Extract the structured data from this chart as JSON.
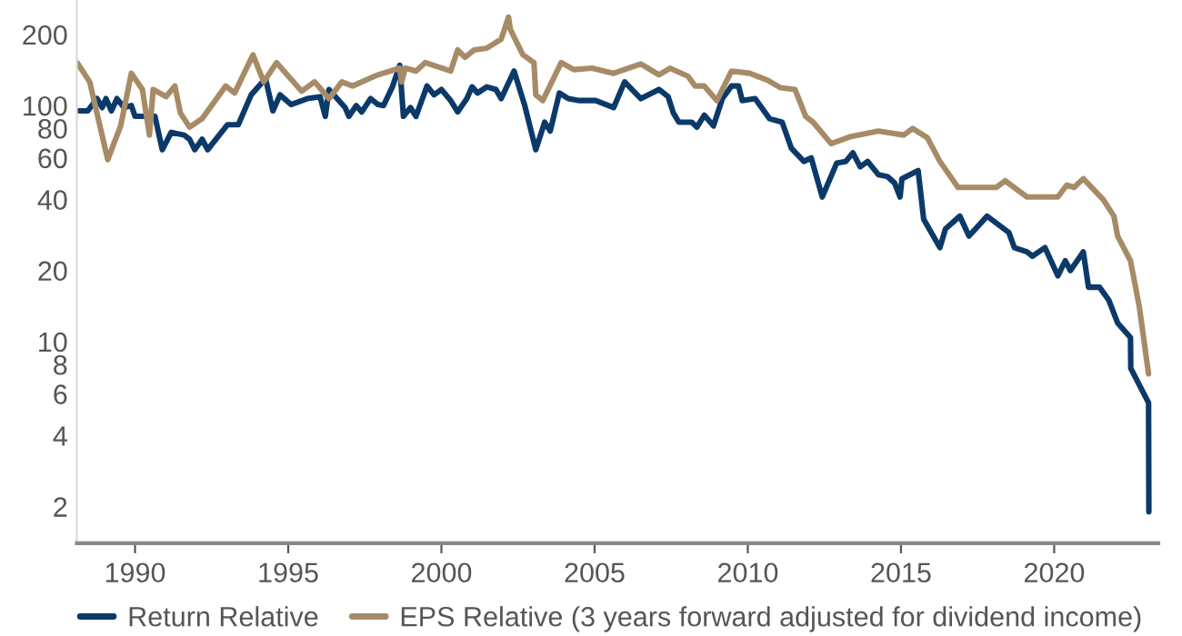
{
  "chart_data": {
    "type": "line",
    "log": "y",
    "grid": false,
    "legend": "bottom",
    "marker": "none",
    "line_style": "solid",
    "xlim": [
      1988.1,
      2023.4
    ],
    "xticks": [
      1990,
      1995,
      2000,
      2005,
      2010,
      2015,
      2020
    ],
    "ylim": [
      1.4,
      280
    ],
    "yticks": [
      2,
      4,
      6,
      8,
      10,
      20,
      40,
      60,
      80,
      100,
      200
    ],
    "series": [
      {
        "name": "Return Relative",
        "color": "#0b3a6a",
        "x": [
          1988.17,
          1988.46,
          1988.76,
          1988.93,
          1989.05,
          1989.23,
          1989.41,
          1989.64,
          1989.88,
          1990.0,
          1990.65,
          1990.89,
          1991.18,
          1991.6,
          1991.78,
          1991.95,
          1992.19,
          1992.37,
          1993.02,
          1993.37,
          1993.79,
          1994.26,
          1994.5,
          1994.73,
          1995.09,
          1995.62,
          1996.04,
          1996.21,
          1996.33,
          1996.86,
          1996.98,
          1997.22,
          1997.4,
          1997.69,
          1997.93,
          1998.11,
          1998.4,
          1998.64,
          1998.76,
          1998.99,
          1999.17,
          1999.53,
          1999.76,
          2000.0,
          2000.3,
          2000.53,
          2000.83,
          2001.0,
          2001.18,
          2001.48,
          2001.78,
          2001.95,
          2002.37,
          2002.72,
          2003.08,
          2003.37,
          2003.55,
          2003.85,
          2004.14,
          2004.5,
          2005.03,
          2005.62,
          2005.98,
          2006.51,
          2007.1,
          2007.4,
          2007.57,
          2007.75,
          2008.17,
          2008.34,
          2008.58,
          2008.88,
          2009.17,
          2009.47,
          2009.7,
          2009.82,
          2010.24,
          2010.71,
          2011.12,
          2011.42,
          2011.83,
          2012.07,
          2012.43,
          2012.9,
          2013.2,
          2013.43,
          2013.67,
          2013.91,
          2014.26,
          2014.56,
          2014.79,
          2014.97,
          2015.03,
          2015.56,
          2015.74,
          2016.27,
          2016.45,
          2016.92,
          2017.22,
          2017.81,
          2018.52,
          2018.7,
          2019.11,
          2019.29,
          2019.7,
          2020.12,
          2020.36,
          2020.53,
          2020.95,
          2021.12,
          2021.48,
          2021.78,
          2022.07,
          2022.49,
          2022.5,
          2023.08,
          2023.09
        ],
        "values": [
          95,
          95,
          107,
          98,
          107,
          95,
          107,
          98,
          100,
          90,
          90,
          65,
          77,
          75,
          72,
          65,
          72,
          65,
          83,
          83,
          111,
          130,
          95,
          111,
          101,
          107,
          109,
          90,
          117,
          98,
          90,
          100,
          94,
          107,
          101,
          100,
          120,
          148,
          90,
          98,
          90,
          121,
          111,
          117,
          105,
          94,
          107,
          120,
          113,
          120,
          117,
          107,
          140,
          100,
          65,
          85,
          78,
          113,
          107,
          105,
          105,
          98,
          126,
          107,
          117,
          109,
          93,
          85,
          85,
          81,
          91,
          82,
          107,
          121,
          121,
          105,
          107,
          88,
          85,
          66,
          58,
          60,
          41,
          57,
          58,
          63,
          55,
          58,
          51,
          50,
          47,
          41,
          49,
          53,
          33,
          25,
          30,
          34,
          28,
          34,
          29,
          25,
          24,
          23,
          25,
          19,
          22,
          20,
          24,
          17,
          17,
          15,
          12,
          10.4,
          7.7,
          5.5,
          1.9
        ]
      },
      {
        "name": "EPS Relative (3 years forward adjusted for dividend income)",
        "color": "#a78b67",
        "x": [
          1988.11,
          1988.52,
          1989.11,
          1989.53,
          1989.88,
          1990.24,
          1990.47,
          1990.59,
          1991.01,
          1991.3,
          1991.48,
          1991.78,
          1992.19,
          1992.96,
          1993.25,
          1993.85,
          1994.2,
          1994.62,
          1995.44,
          1995.86,
          1996.33,
          1996.75,
          1997.1,
          1997.93,
          1998.64,
          1998.7,
          1998.82,
          1999.17,
          1999.47,
          2000.3,
          2000.53,
          2000.77,
          2001.07,
          2001.48,
          2001.95,
          2002.19,
          2002.25,
          2002.66,
          2003.02,
          2003.08,
          2003.31,
          2003.91,
          2004.32,
          2004.91,
          2005.62,
          2006.51,
          2007.1,
          2007.46,
          2008.05,
          2008.28,
          2008.58,
          2008.99,
          2009.47,
          2010.06,
          2010.65,
          2011.07,
          2011.54,
          2011.89,
          2012.13,
          2012.72,
          2013.37,
          2014.26,
          2015.09,
          2015.38,
          2015.86,
          2016.27,
          2016.86,
          2018.11,
          2018.4,
          2019.11,
          2020.12,
          2020.41,
          2020.65,
          2020.95,
          2021.6,
          2021.95,
          2022.07,
          2022.49,
          2022.78,
          2023.08
        ],
        "values": [
          152,
          126,
          59,
          82,
          137,
          117,
          75,
          117,
          109,
          121,
          93,
          81,
          88,
          121,
          113,
          164,
          126,
          152,
          115,
          126,
          107,
          126,
          121,
          135,
          144,
          126,
          144,
          140,
          152,
          140,
          172,
          160,
          172,
          175,
          191,
          237,
          210,
          164,
          152,
          111,
          105,
          152,
          142,
          144,
          137,
          150,
          135,
          144,
          133,
          121,
          121,
          105,
          140,
          137,
          128,
          119,
          117,
          90,
          85,
          69,
          74,
          78,
          75,
          80,
          73,
          58,
          45,
          45,
          48,
          41,
          41,
          46,
          45,
          49,
          40,
          34,
          28,
          22,
          14,
          7.3
        ]
      }
    ]
  }
}
